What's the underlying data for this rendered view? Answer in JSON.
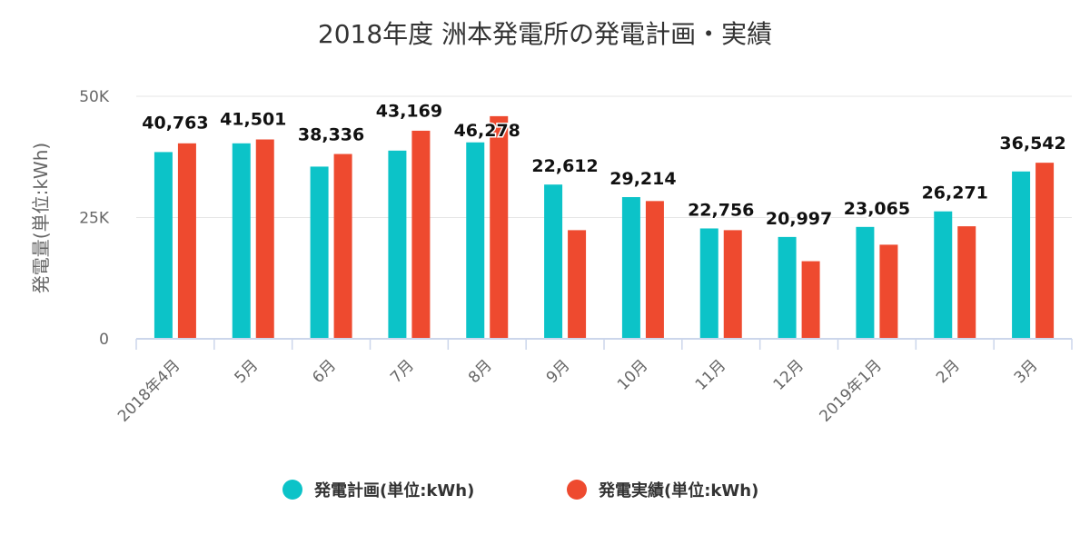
{
  "chart_data": {
    "type": "bar",
    "title": "2018年度 洲本発電所の発電計画・実績",
    "ylabel": "発電量(単位:kWh)",
    "xlabel": "",
    "ylim": [
      0,
      50000
    ],
    "yticks": [
      0,
      25000,
      50000
    ],
    "ytick_labels": [
      "0",
      "25K",
      "50K"
    ],
    "grid": true,
    "legend_position": "bottom-center",
    "categories": [
      "2018年4月",
      "5月",
      "6月",
      "7月",
      "8月",
      "9月",
      "10月",
      "11月",
      "12月",
      "2019年1月",
      "2月",
      "3月"
    ],
    "series": [
      {
        "name": "発電計画(単位:kWh)",
        "color": "#0cc3c8",
        "values": [
          38500,
          40300,
          35500,
          38800,
          40500,
          31800,
          29214,
          22756,
          20997,
          23065,
          26271,
          34500
        ]
      },
      {
        "name": "発電実績(単位:kWh)",
        "color": "#ee4a2f",
        "values": [
          40300,
          41100,
          38100,
          42900,
          45900,
          22400,
          28400,
          22400,
          16000,
          19400,
          23200,
          36300
        ]
      }
    ],
    "data_labels": [
      {
        "text": "40,763",
        "category": 0,
        "value": 40763
      },
      {
        "text": "41,501",
        "category": 1,
        "value": 41501
      },
      {
        "text": "38,336",
        "category": 2,
        "value": 38336
      },
      {
        "text": "43,169",
        "category": 3,
        "value": 43169
      },
      {
        "text": "46,278",
        "category": 4,
        "value": 46278
      },
      {
        "text": "22,612",
        "category": 5,
        "value": 22612
      },
      {
        "text": "29,214",
        "category": 6,
        "value": 29214
      },
      {
        "text": "22,756",
        "category": 7,
        "value": 22756
      },
      {
        "text": "20,997",
        "category": 8,
        "value": 20997
      },
      {
        "text": "23,065",
        "category": 9,
        "value": 23065
      },
      {
        "text": "26,271",
        "category": 10,
        "value": 26271
      },
      {
        "text": "36,542",
        "category": 11,
        "value": 36542
      }
    ]
  }
}
